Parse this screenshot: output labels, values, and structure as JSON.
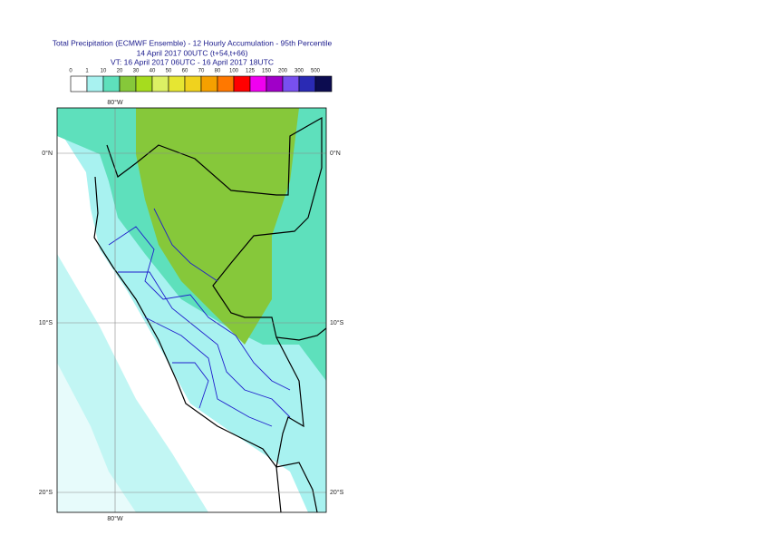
{
  "title": {
    "lines": [
      "Total Precipitation (ECMWF Ensemble) - 12 Hourly Accumulation - 95th Percentile",
      "14 April 2017 00UTC (t+54,t+66)",
      "VT: 16 April 2017 06UTC - 16 April 2017 18UTC"
    ]
  },
  "legend": {
    "levels": [
      0,
      1,
      10,
      20,
      30,
      40,
      50,
      60,
      70,
      80,
      100,
      125,
      150,
      200,
      300,
      500
    ],
    "colors": [
      "#ffffff",
      "#a8f2f0",
      "#5ee0bc",
      "#86c83a",
      "#a6dc1e",
      "#dcf064",
      "#e6e632",
      "#f0d21e",
      "#f5a000",
      "#ff7800",
      "#ff0000",
      "#f000f0",
      "#a000c8",
      "#7850f0",
      "#2a2ab4",
      "#0c0c50"
    ]
  },
  "map": {
    "lon_labels": [
      "80°W"
    ],
    "lat_labels": [
      "0°N",
      "10°S",
      "20°S"
    ]
  }
}
